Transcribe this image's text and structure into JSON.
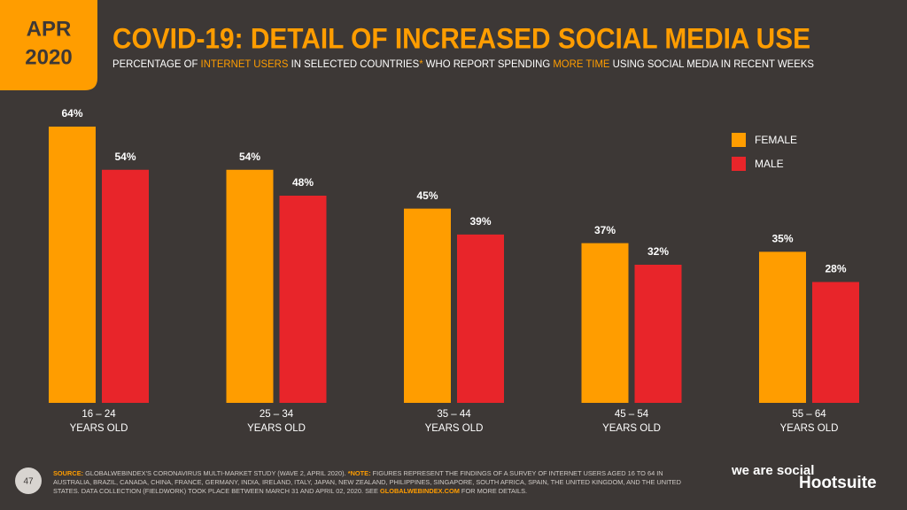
{
  "badge": [
    "APR",
    "2020"
  ],
  "page_number": "47",
  "logos": [
    "we are social",
    "Hootsuite"
  ],
  "footer": [
    {
      "text": "SOURCE:",
      "highlight": true
    },
    {
      "text": " GLOBALWEBINDEX'S CORONAVIRUS MULTI-MARKET STUDY (WAVE 2, APRIL 2020). ",
      "highlight": false
    },
    {
      "text": "*NOTE:",
      "highlight": true
    },
    {
      "text": " FIGURES REPRESENT THE FINDINGS OF A SURVEY OF INTERNET USERS AGED 16 TO 64 IN AUSTRALIA, BRAZIL, CANADA, CHINA, FRANCE, GERMANY, INDIA, IRELAND, ITALY, JAPAN, NEW ZEALAND, PHILIPPINES, SINGAPORE, SOUTH AFRICA, SPAIN, THE UNITED KINGDOM, AND THE UNITED STATES. DATA COLLECTION (FIELDWORK) TOOK PLACE BETWEEN MARCH 31 AND APRIL 02, 2020. SEE ",
      "highlight": false
    },
    {
      "text": "GLOBALWEBINDEX.COM",
      "highlight": true
    },
    {
      "text": " FOR MORE DETAILS.",
      "highlight": false
    }
  ],
  "chart_data": {
    "type": "bar",
    "title": "COVID-19: DETAIL OF INCREASED SOCIAL MEDIA USE",
    "subtitle": [
      {
        "text": "PERCENTAGE OF ",
        "highlight": false
      },
      {
        "text": "INTERNET USERS",
        "highlight": true
      },
      {
        "text": " IN SELECTED COUNTRIES",
        "highlight": false
      },
      {
        "text": "*",
        "highlight": true
      },
      {
        "text": " WHO REPORT SPENDING ",
        "highlight": false
      },
      {
        "text": "MORE TIME",
        "highlight": true
      },
      {
        "text": " USING SOCIAL MEDIA IN RECENT WEEKS",
        "highlight": false
      }
    ],
    "categories": [
      "16 – 24\nYEARS OLD",
      "25 – 34\nYEARS OLD",
      "35 – 44\nYEARS OLD",
      "45 – 54\nYEARS OLD",
      "55 – 64\nYEARS OLD"
    ],
    "series": [
      {
        "name": "FEMALE",
        "color": "#ff9d00",
        "values": [
          64,
          54,
          45,
          37,
          35
        ],
        "value_labels": [
          "64%",
          "54%",
          "45%",
          "37%",
          "35%"
        ]
      },
      {
        "name": "MALE",
        "color": "#e8252a",
        "values": [
          54,
          48,
          39,
          32,
          28
        ],
        "value_labels": [
          "54%",
          "48%",
          "39%",
          "32%",
          "28%"
        ]
      }
    ],
    "legend": "top-right"
  }
}
